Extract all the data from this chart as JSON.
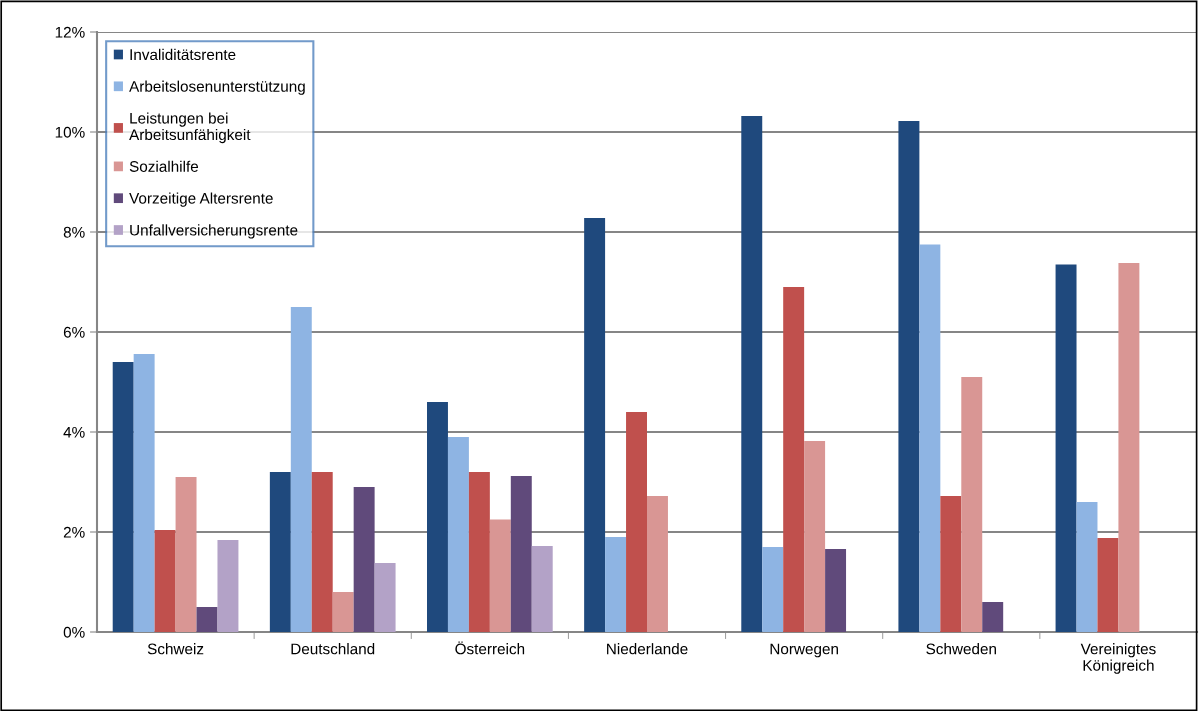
{
  "chart_data": {
    "type": "bar",
    "categories": [
      "Schweiz",
      "Deutschland",
      "Österreich",
      "Niederlande",
      "Norwegen",
      "Schweden",
      "Vereinigtes\nKönigreich"
    ],
    "series": [
      {
        "name": "Invaliditätsrente",
        "color": "#1f497d",
        "values": [
          5.4,
          3.2,
          4.6,
          8.28,
          10.32,
          10.22,
          7.35
        ]
      },
      {
        "name": "Arbeitslosenunterstützung",
        "color": "#8eb4e3",
        "values": [
          5.56,
          6.5,
          3.9,
          1.9,
          1.7,
          7.75,
          2.6
        ]
      },
      {
        "name": "Leistungen bei\nArbeitsunfähigkeit",
        "color": "#c0504d",
        "values": [
          2.04,
          3.2,
          3.2,
          4.4,
          6.9,
          2.72,
          1.88
        ]
      },
      {
        "name": "Sozialhilfe",
        "color": "#d99694",
        "values": [
          3.1,
          0.8,
          2.25,
          2.72,
          3.82,
          5.1,
          7.38
        ]
      },
      {
        "name": "Vorzeitige Altersrente",
        "color": "#604a7b",
        "values": [
          0.5,
          2.9,
          3.12,
          null,
          1.66,
          0.6,
          null
        ]
      },
      {
        "name": "Unfallversicherungsrente",
        "color": "#b3a2c7",
        "values": [
          1.84,
          1.38,
          1.72,
          null,
          null,
          null,
          null
        ]
      }
    ],
    "ylim": [
      0,
      12
    ],
    "yticks": [
      {
        "value": 0,
        "label": "0%"
      },
      {
        "value": 2,
        "label": "2%"
      },
      {
        "value": 4,
        "label": "4%"
      },
      {
        "value": 6,
        "label": "6%"
      },
      {
        "value": 8,
        "label": "8%"
      },
      {
        "value": 10,
        "label": "10%"
      },
      {
        "value": 12,
        "label": "12%"
      }
    ],
    "grid": "y",
    "legend": "top left"
  }
}
